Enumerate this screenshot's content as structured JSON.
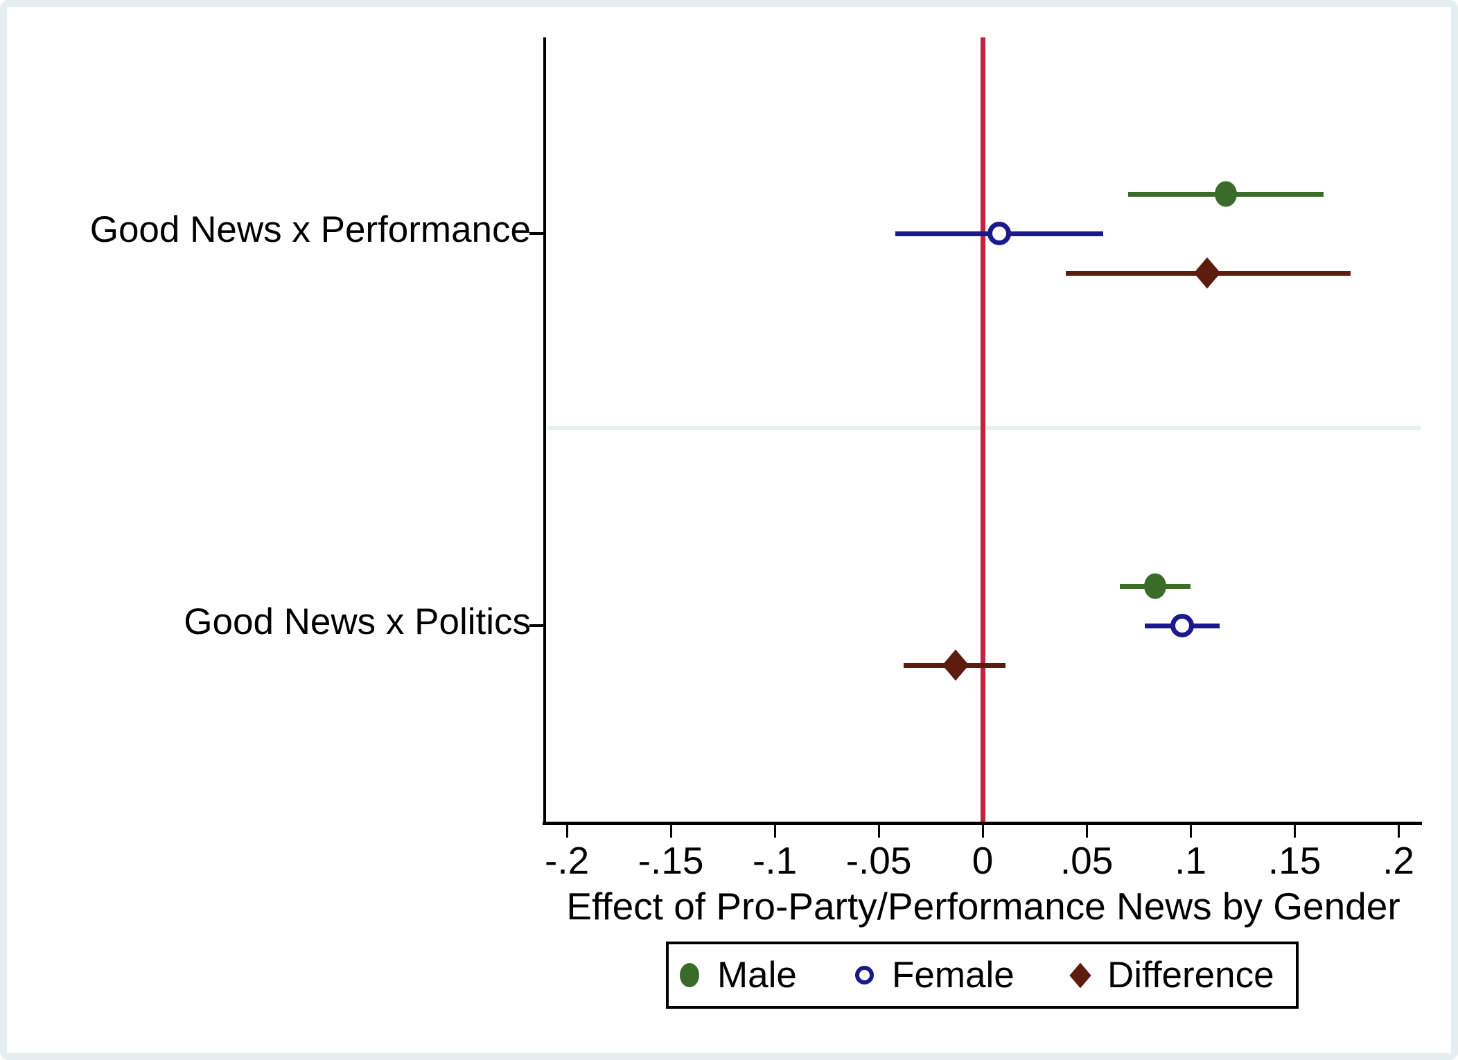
{
  "chart_data": {
    "type": "dot-whisker",
    "title": "",
    "xlabel": "Effect of Pro-Party/Performance News by Gender",
    "ylabel": "",
    "x_range": [
      -0.2107,
      0.2113
    ],
    "zero_line_value": 0,
    "grid": false,
    "legend_position": "bottom",
    "x_ticks": [
      {
        "value": -0.2,
        "label": "-.2"
      },
      {
        "value": -0.15,
        "label": "-.15"
      },
      {
        "value": -0.1,
        "label": "-.1"
      },
      {
        "value": -0.05,
        "label": "-.05"
      },
      {
        "value": 0,
        "label": "0"
      },
      {
        "value": 0.05,
        "label": ".05"
      },
      {
        "value": 0.1,
        "label": ".1"
      },
      {
        "value": 0.15,
        "label": ".15"
      },
      {
        "value": 0.2,
        "label": ".2"
      }
    ],
    "series": [
      {
        "name": "Male",
        "marker": "filled-circle",
        "color": "#3a6b28"
      },
      {
        "name": "Female",
        "marker": "open-circle",
        "color": "#1a1a8c"
      },
      {
        "name": "Difference",
        "marker": "filled-diamond",
        "color": "#5e1b10"
      }
    ],
    "groups": [
      {
        "label": "Good News x Performance",
        "estimates": [
          {
            "series": "Male",
            "value": 0.117,
            "ci_low": 0.07,
            "ci_high": 0.164
          },
          {
            "series": "Female",
            "value": 0.008,
            "ci_low": -0.042,
            "ci_high": 0.058
          },
          {
            "series": "Difference",
            "value": 0.108,
            "ci_low": 0.04,
            "ci_high": 0.177
          }
        ]
      },
      {
        "label": "Good News x Politics",
        "estimates": [
          {
            "series": "Male",
            "value": 0.083,
            "ci_low": 0.066,
            "ci_high": 0.1
          },
          {
            "series": "Female",
            "value": 0.096,
            "ci_low": 0.078,
            "ci_high": 0.114
          },
          {
            "series": "Difference",
            "value": -0.013,
            "ci_low": -0.038,
            "ci_high": 0.011
          }
        ]
      }
    ],
    "legend": [
      "Male",
      "Female",
      "Difference"
    ],
    "colors": {
      "zero_line": "#c0243f",
      "divider": "#e9f0f2",
      "axis": "#000000",
      "frame": "#e5eef1",
      "text": "#000000"
    }
  }
}
